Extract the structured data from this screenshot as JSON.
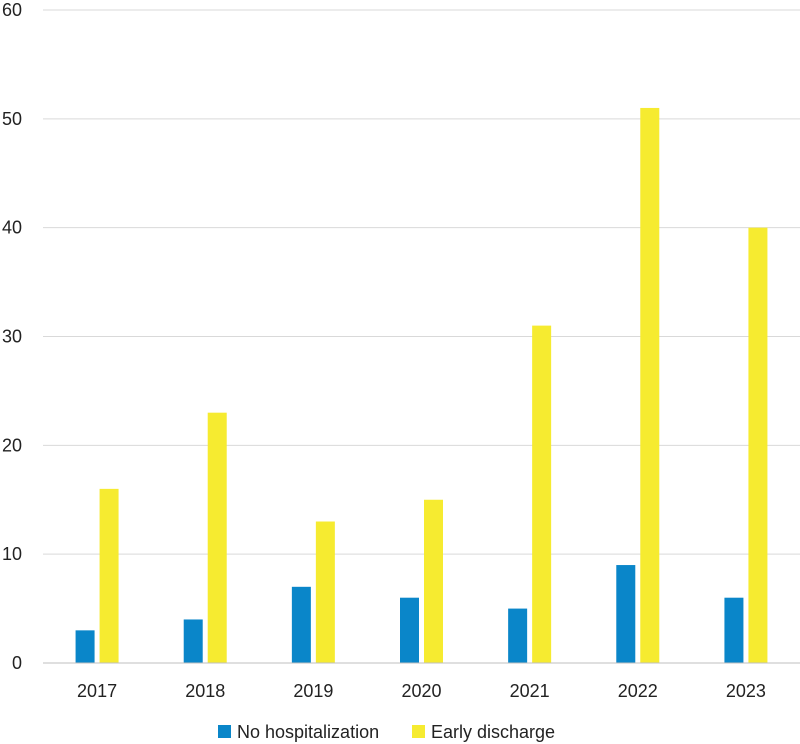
{
  "chart_data": {
    "type": "bar",
    "title": "",
    "xlabel": "",
    "ylabel": "",
    "categories": [
      "2017",
      "2018",
      "2019",
      "2020",
      "2021",
      "2022",
      "2023"
    ],
    "series": [
      {
        "name": "No hospitalization",
        "color": "#0a86c9",
        "values": [
          3,
          4,
          7,
          6,
          5,
          9,
          6
        ]
      },
      {
        "name": "Early discharge",
        "color": "#f6eb30",
        "values": [
          16,
          23,
          13,
          15,
          31,
          51,
          40
        ]
      }
    ],
    "ylim": [
      0,
      60
    ],
    "yticks": [
      "0",
      "10",
      "20",
      "30",
      "40",
      "50",
      "60"
    ],
    "grid": true,
    "legend_position": "bottom-center"
  }
}
